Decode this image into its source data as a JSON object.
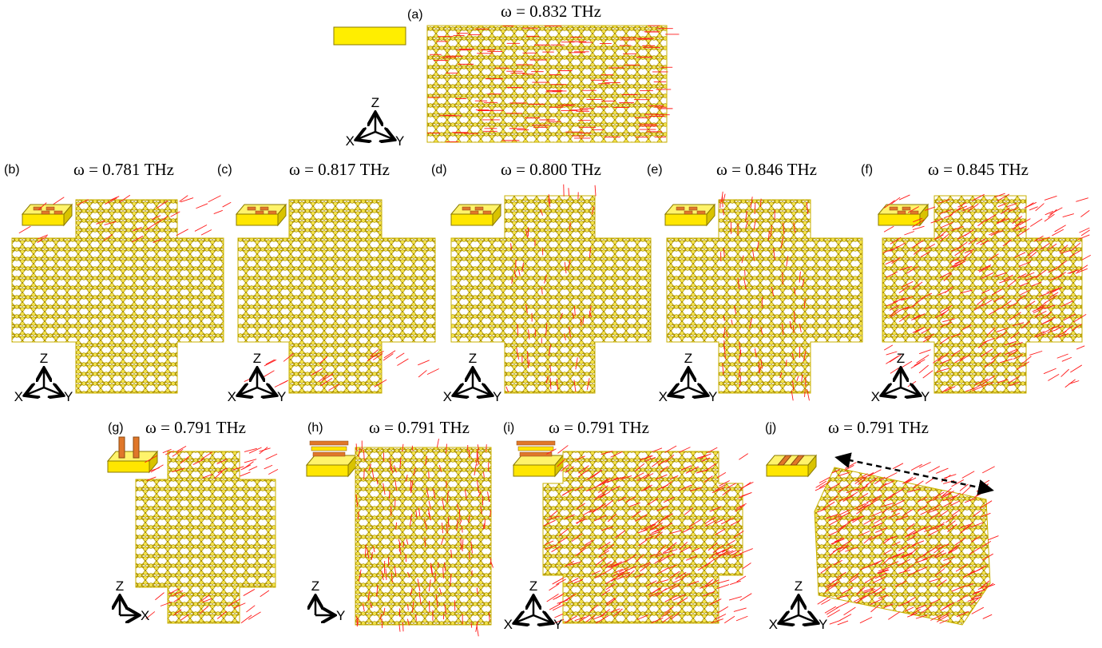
{
  "panels": [
    {
      "label": "(a)",
      "title": "ω = 0.832 THz",
      "axes": [
        "Z",
        "X",
        "Y"
      ]
    },
    {
      "label": "(b)",
      "title": "ω = 0.781 THz",
      "axes": [
        "Z",
        "X",
        "Y"
      ]
    },
    {
      "label": "(c)",
      "title": "ω = 0.817 THz",
      "axes": [
        "Z",
        "X",
        "Y"
      ]
    },
    {
      "label": "(d)",
      "title": "ω = 0.800 THz",
      "axes": [
        "Z",
        "X",
        "Y"
      ]
    },
    {
      "label": "(e)",
      "title": "ω = 0.846 THz",
      "axes": [
        "Z",
        "X",
        "Y"
      ]
    },
    {
      "label": "(f)",
      "title": "ω = 0.845 THz",
      "axes": [
        "Z",
        "X",
        "Y"
      ]
    },
    {
      "label": "(g)",
      "title": "ω = 0.791 THz",
      "axes": [
        "Z",
        "X"
      ]
    },
    {
      "label": "(h)",
      "title": "ω = 0.791 THz",
      "axes": [
        "Z",
        "Y"
      ]
    },
    {
      "label": "(i)",
      "title": "ω = 0.791 THz",
      "axes": [
        "Z",
        "X",
        "Y"
      ]
    },
    {
      "label": "(j)",
      "title": "ω = 0.791 THz",
      "axes": [
        "Z",
        "X",
        "Y"
      ]
    }
  ]
}
